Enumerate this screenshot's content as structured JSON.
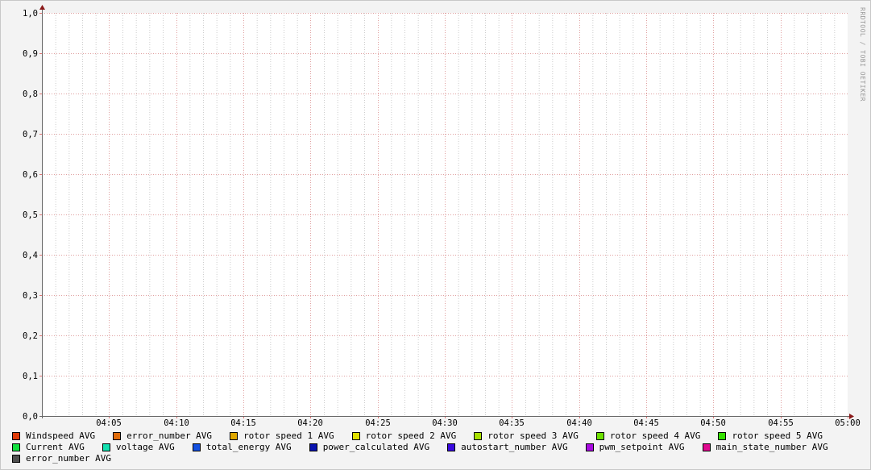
{
  "watermark": "RRDTOOL / TOBI OETIKER",
  "chart_data": {
    "type": "line",
    "xlabel": "",
    "ylabel": "",
    "ylim": [
      0,
      1
    ],
    "yticks": [
      "0,0",
      "0,1",
      "0,2",
      "0,3",
      "0,4",
      "0,5",
      "0,6",
      "0,7",
      "0,8",
      "0,9",
      "1,0"
    ],
    "xlim": [
      "04:00",
      "05:00"
    ],
    "xticks": [
      "04:05",
      "04:10",
      "04:15",
      "04:20",
      "04:25",
      "04:30",
      "04:35",
      "04:40",
      "04:45",
      "04:50",
      "04:55",
      "05:00"
    ],
    "grid": true,
    "legend_placement": "bottom",
    "series": [
      {
        "name": "Windspeed AVG",
        "color": "#e03c0a",
        "values": []
      },
      {
        "name": "error_number AVG",
        "color": "#e06c0a",
        "values": []
      },
      {
        "name": "rotor speed 1 AVG",
        "color": "#e0a800",
        "values": []
      },
      {
        "name": "rotor speed 2 AVG",
        "color": "#e0e000",
        "values": []
      },
      {
        "name": "rotor speed 3 AVG",
        "color": "#a8e000",
        "values": []
      },
      {
        "name": "rotor speed 4 AVG",
        "color": "#6ce000",
        "values": []
      },
      {
        "name": "rotor speed 5 AVG",
        "color": "#34e000",
        "values": []
      },
      {
        "name": "Current AVG",
        "color": "#14e040",
        "values": []
      },
      {
        "name": "voltage AVG",
        "color": "#14e0b0",
        "values": []
      },
      {
        "name": "total_energy AVG",
        "color": "#1450e0",
        "values": []
      },
      {
        "name": "power_calculated AVG",
        "color": "#0a14b0",
        "values": []
      },
      {
        "name": "autostart_number AVG",
        "color": "#3a0ae0",
        "values": []
      },
      {
        "name": "pwm_setpoint AVG",
        "color": "#a80ae0",
        "values": []
      },
      {
        "name": "main_state_number AVG",
        "color": "#e00a90",
        "values": []
      },
      {
        "name": "error_number AVG",
        "color": "#505050",
        "values": []
      }
    ]
  }
}
